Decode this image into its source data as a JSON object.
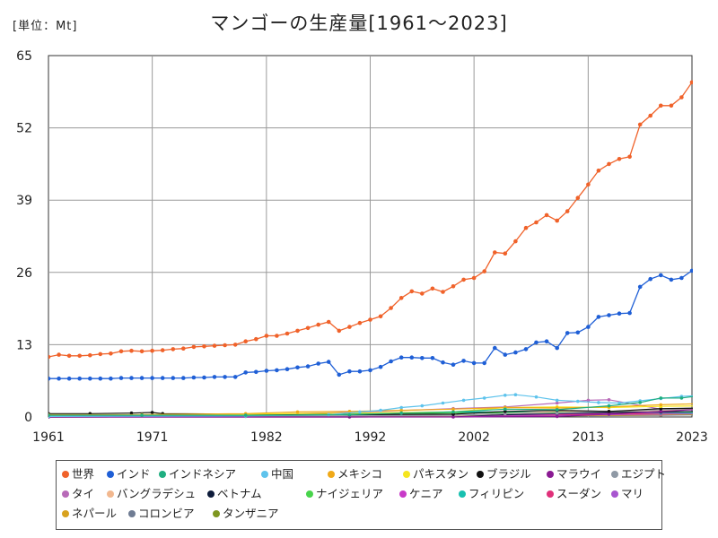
{
  "unit_label": "[単位：Mt]",
  "chart_data": {
    "type": "line",
    "title": "マンゴーの生産量[1961～2023]",
    "ylim": [
      0,
      65
    ],
    "xlim": [
      1961,
      2023
    ],
    "y_ticks": [
      "0",
      "13",
      "26",
      "39",
      "52",
      "65"
    ],
    "x_ticks": [
      "1961",
      "1971",
      "1982",
      "1992",
      "2002",
      "2013",
      "2023"
    ],
    "grid": true,
    "legend_position": "bottom",
    "series": [
      {
        "name": "世界",
        "color": "#f0622a",
        "values": [
          [
            1961,
            10.8
          ],
          [
            1962,
            11.2
          ],
          [
            1963,
            11.0
          ],
          [
            1964,
            11.0
          ],
          [
            1965,
            11.1
          ],
          [
            1966,
            11.3
          ],
          [
            1967,
            11.4
          ],
          [
            1968,
            11.8
          ],
          [
            1969,
            11.9
          ],
          [
            1970,
            11.8
          ],
          [
            1971,
            11.9
          ],
          [
            1972,
            12.0
          ],
          [
            1973,
            12.2
          ],
          [
            1974,
            12.3
          ],
          [
            1975,
            12.6
          ],
          [
            1976,
            12.7
          ],
          [
            1977,
            12.8
          ],
          [
            1978,
            12.9
          ],
          [
            1979,
            13.0
          ],
          [
            1980,
            13.6
          ],
          [
            1981,
            14.0
          ],
          [
            1982,
            14.6
          ],
          [
            1983,
            14.6
          ],
          [
            1984,
            15.0
          ],
          [
            1985,
            15.5
          ],
          [
            1986,
            16.0
          ],
          [
            1987,
            16.6
          ],
          [
            1988,
            17.1
          ],
          [
            1989,
            15.5
          ],
          [
            1990,
            16.2
          ],
          [
            1991,
            16.9
          ],
          [
            1992,
            17.5
          ],
          [
            1993,
            18.1
          ],
          [
            1994,
            19.6
          ],
          [
            1995,
            21.4
          ],
          [
            1996,
            22.6
          ],
          [
            1997,
            22.2
          ],
          [
            1998,
            23.1
          ],
          [
            1999,
            22.5
          ],
          [
            2000,
            23.5
          ],
          [
            2001,
            24.7
          ],
          [
            2002,
            25.0
          ],
          [
            2003,
            26.2
          ],
          [
            2004,
            29.6
          ],
          [
            2005,
            29.4
          ],
          [
            2006,
            31.6
          ],
          [
            2007,
            34.0
          ],
          [
            2008,
            35.0
          ],
          [
            2009,
            36.3
          ],
          [
            2010,
            35.3
          ],
          [
            2011,
            37.0
          ],
          [
            2012,
            39.4
          ],
          [
            2013,
            41.8
          ],
          [
            2014,
            44.3
          ],
          [
            2015,
            45.5
          ],
          [
            2016,
            46.4
          ],
          [
            2017,
            46.8
          ],
          [
            2018,
            52.6
          ],
          [
            2019,
            54.2
          ],
          [
            2020,
            56.0
          ],
          [
            2021,
            56.0
          ],
          [
            2022,
            57.5
          ],
          [
            2023,
            60.2
          ],
          [
            2024,
            60.6
          ]
        ]
      },
      {
        "name": "インド",
        "color": "#1f5fd6",
        "values": [
          [
            1961,
            6.9
          ],
          [
            1962,
            6.9
          ],
          [
            1963,
            6.9
          ],
          [
            1964,
            6.9
          ],
          [
            1965,
            6.9
          ],
          [
            1966,
            6.9
          ],
          [
            1967,
            6.9
          ],
          [
            1968,
            7.0
          ],
          [
            1969,
            7.0
          ],
          [
            1970,
            7.0
          ],
          [
            1971,
            7.0
          ],
          [
            1972,
            7.0
          ],
          [
            1973,
            7.0
          ],
          [
            1974,
            7.0
          ],
          [
            1975,
            7.1
          ],
          [
            1976,
            7.1
          ],
          [
            1977,
            7.2
          ],
          [
            1978,
            7.2
          ],
          [
            1979,
            7.2
          ],
          [
            1980,
            8.0
          ],
          [
            1981,
            8.1
          ],
          [
            1982,
            8.3
          ],
          [
            1983,
            8.4
          ],
          [
            1984,
            8.6
          ],
          [
            1985,
            8.9
          ],
          [
            1986,
            9.1
          ],
          [
            1987,
            9.6
          ],
          [
            1988,
            9.9
          ],
          [
            1989,
            7.6
          ],
          [
            1990,
            8.2
          ],
          [
            1991,
            8.2
          ],
          [
            1992,
            8.4
          ],
          [
            1993,
            9.0
          ],
          [
            1994,
            10.0
          ],
          [
            1995,
            10.7
          ],
          [
            1996,
            10.7
          ],
          [
            1997,
            10.6
          ],
          [
            1998,
            10.6
          ],
          [
            1999,
            9.8
          ],
          [
            2000,
            9.4
          ],
          [
            2001,
            10.1
          ],
          [
            2002,
            9.7
          ],
          [
            2003,
            9.7
          ],
          [
            2004,
            12.4
          ],
          [
            2005,
            11.2
          ],
          [
            2006,
            11.6
          ],
          [
            2007,
            12.2
          ],
          [
            2008,
            13.4
          ],
          [
            2009,
            13.6
          ],
          [
            2010,
            12.4
          ],
          [
            2011,
            15.1
          ],
          [
            2012,
            15.2
          ],
          [
            2013,
            16.2
          ],
          [
            2014,
            18.0
          ],
          [
            2015,
            18.3
          ],
          [
            2016,
            18.6
          ],
          [
            2017,
            18.7
          ],
          [
            2018,
            23.4
          ],
          [
            2019,
            24.8
          ],
          [
            2020,
            25.5
          ],
          [
            2021,
            24.7
          ],
          [
            2022,
            25.0
          ],
          [
            2023,
            26.3
          ],
          [
            2024,
            26.3
          ]
        ]
      },
      {
        "name": "インドネシア",
        "color": "#1fae80",
        "values": [
          [
            1961,
            0.3
          ],
          [
            1970,
            0.3
          ],
          [
            1980,
            0.3
          ],
          [
            1990,
            0.4
          ],
          [
            1995,
            0.7
          ],
          [
            2000,
            0.9
          ],
          [
            2005,
            1.4
          ],
          [
            2010,
            1.3
          ],
          [
            2015,
            2.0
          ],
          [
            2018,
            2.6
          ],
          [
            2020,
            3.4
          ],
          [
            2022,
            3.4
          ],
          [
            2024,
            3.9
          ]
        ]
      },
      {
        "name": "中国",
        "color": "#5ec3ec",
        "values": [
          [
            1961,
            0.1
          ],
          [
            1980,
            0.2
          ],
          [
            1988,
            0.4
          ],
          [
            1991,
            0.9
          ],
          [
            1993,
            1.2
          ],
          [
            1995,
            1.7
          ],
          [
            1997,
            2.0
          ],
          [
            1999,
            2.5
          ],
          [
            2001,
            3.0
          ],
          [
            2003,
            3.4
          ],
          [
            2005,
            3.9
          ],
          [
            2006,
            4.0
          ],
          [
            2008,
            3.6
          ],
          [
            2010,
            3.0
          ],
          [
            2012,
            2.8
          ],
          [
            2014,
            2.6
          ],
          [
            2016,
            2.5
          ],
          [
            2018,
            2.9
          ],
          [
            2020,
            3.3
          ],
          [
            2022,
            3.7
          ],
          [
            2024,
            3.9
          ]
        ]
      },
      {
        "name": "メキシコ",
        "color": "#f0a918",
        "values": [
          [
            1961,
            0.4
          ],
          [
            1970,
            0.4
          ],
          [
            1980,
            0.6
          ],
          [
            1985,
            0.9
          ],
          [
            1990,
            1.0
          ],
          [
            1995,
            1.2
          ],
          [
            2000,
            1.4
          ],
          [
            2005,
            1.7
          ],
          [
            2010,
            1.6
          ],
          [
            2015,
            1.8
          ],
          [
            2020,
            2.2
          ],
          [
            2024,
            2.4
          ]
        ]
      },
      {
        "name": "パキスタン",
        "color": "#f5e51f",
        "values": [
          [
            1961,
            0.3
          ],
          [
            1970,
            0.4
          ],
          [
            1980,
            0.5
          ],
          [
            1990,
            0.7
          ],
          [
            2000,
            0.9
          ],
          [
            2005,
            1.7
          ],
          [
            2010,
            1.8
          ],
          [
            2015,
            1.7
          ],
          [
            2020,
            1.9
          ],
          [
            2024,
            2.0
          ]
        ]
      },
      {
        "name": "ブラジル",
        "color": "#111111",
        "values": [
          [
            1961,
            0.6
          ],
          [
            1965,
            0.6
          ],
          [
            1969,
            0.7
          ],
          [
            1971,
            0.8
          ],
          [
            1972,
            0.6
          ],
          [
            1980,
            0.5
          ],
          [
            1990,
            0.4
          ],
          [
            2000,
            0.5
          ],
          [
            2005,
            1.0
          ],
          [
            2010,
            1.2
          ],
          [
            2015,
            1.0
          ],
          [
            2020,
            1.5
          ],
          [
            2024,
            1.6
          ]
        ]
      },
      {
        "name": "マラウイ",
        "color": "#8a1a93",
        "values": [
          [
            1961,
            0.0
          ],
          [
            2000,
            0.0
          ],
          [
            2010,
            0.1
          ],
          [
            2015,
            0.5
          ],
          [
            2020,
            1.0
          ],
          [
            2024,
            1.4
          ]
        ]
      },
      {
        "name": "エジプト",
        "color": "#8f99a5",
        "values": [
          [
            1961,
            0.1
          ],
          [
            1980,
            0.1
          ],
          [
            1990,
            0.2
          ],
          [
            2000,
            0.3
          ],
          [
            2005,
            0.6
          ],
          [
            2010,
            0.7
          ],
          [
            2015,
            1.0
          ],
          [
            2020,
            1.3
          ],
          [
            2024,
            1.6
          ]
        ]
      },
      {
        "name": "タイ",
        "color": "#b86ab8",
        "values": [
          [
            1961,
            0.2
          ],
          [
            1980,
            0.4
          ],
          [
            1990,
            0.8
          ],
          [
            2000,
            1.5
          ],
          [
            2005,
            1.8
          ],
          [
            2010,
            2.5
          ],
          [
            2013,
            3.0
          ],
          [
            2015,
            3.1
          ],
          [
            2020,
            1.4
          ],
          [
            2024,
            1.6
          ]
        ]
      },
      {
        "name": "バングラデシュ",
        "color": "#f2b88f",
        "values": [
          [
            1961,
            0.2
          ],
          [
            1980,
            0.2
          ],
          [
            1990,
            0.2
          ],
          [
            2000,
            0.2
          ],
          [
            2005,
            0.6
          ],
          [
            2010,
            1.0
          ],
          [
            2015,
            1.0
          ],
          [
            2020,
            1.2
          ],
          [
            2024,
            1.4
          ]
        ]
      },
      {
        "name": "ベトナム",
        "color": "#0d1b3a",
        "values": [
          [
            1961,
            0.0
          ],
          [
            1990,
            0.1
          ],
          [
            2000,
            0.2
          ],
          [
            2010,
            0.6
          ],
          [
            2015,
            0.8
          ],
          [
            2020,
            0.9
          ],
          [
            2024,
            1.0
          ]
        ]
      },
      {
        "name": "ナイジェリア",
        "color": "#48d44b",
        "values": [
          [
            1961,
            0.3
          ],
          [
            1980,
            0.4
          ],
          [
            1990,
            0.5
          ],
          [
            2000,
            0.7
          ],
          [
            2010,
            0.8
          ],
          [
            2020,
            0.9
          ],
          [
            2024,
            0.9
          ]
        ]
      },
      {
        "name": "ケニア",
        "color": "#c83ac8",
        "values": [
          [
            1961,
            0.0
          ],
          [
            1990,
            0.0
          ],
          [
            2000,
            0.1
          ],
          [
            2010,
            0.5
          ],
          [
            2015,
            0.7
          ],
          [
            2020,
            0.8
          ],
          [
            2024,
            0.9
          ]
        ]
      },
      {
        "name": "フィリピン",
        "color": "#18c0b0",
        "values": [
          [
            1961,
            0.2
          ],
          [
            1980,
            0.4
          ],
          [
            1990,
            0.5
          ],
          [
            2000,
            0.9
          ],
          [
            2005,
            0.9
          ],
          [
            2010,
            0.8
          ],
          [
            2015,
            0.8
          ],
          [
            2020,
            0.7
          ],
          [
            2024,
            0.7
          ]
        ]
      },
      {
        "name": "スーダン",
        "color": "#e0307a",
        "values": [
          [
            1961,
            0.0
          ],
          [
            1990,
            0.1
          ],
          [
            2000,
            0.2
          ],
          [
            2010,
            0.4
          ],
          [
            2020,
            0.6
          ],
          [
            2024,
            0.7
          ]
        ]
      },
      {
        "name": "マリ",
        "color": "#a855cf",
        "values": [
          [
            1961,
            0.0
          ],
          [
            1990,
            0.0
          ],
          [
            2000,
            0.1
          ],
          [
            2010,
            0.3
          ],
          [
            2020,
            0.5
          ],
          [
            2024,
            0.6
          ]
        ]
      },
      {
        "name": "ネパール",
        "color": "#d8a21e",
        "values": [
          [
            1961,
            0.0
          ],
          [
            1990,
            0.0
          ],
          [
            2000,
            0.1
          ],
          [
            2010,
            0.2
          ],
          [
            2020,
            0.4
          ],
          [
            2024,
            0.5
          ]
        ]
      },
      {
        "name": "コロンビア",
        "color": "#6f7c93",
        "values": [
          [
            1961,
            0.0
          ],
          [
            1990,
            0.1
          ],
          [
            2000,
            0.2
          ],
          [
            2010,
            0.2
          ],
          [
            2020,
            0.3
          ],
          [
            2024,
            0.4
          ]
        ]
      },
      {
        "name": "タンザニア",
        "color": "#7e9620",
        "values": [
          [
            1961,
            0.0
          ],
          [
            1990,
            0.1
          ],
          [
            2000,
            0.2
          ],
          [
            2010,
            0.3
          ],
          [
            2020,
            0.4
          ],
          [
            2024,
            0.4
          ]
        ]
      }
    ]
  }
}
